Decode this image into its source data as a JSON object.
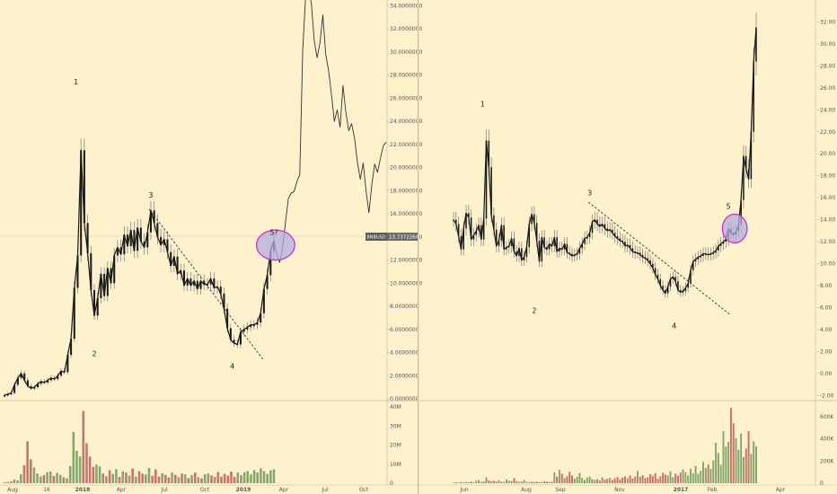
{
  "colors": {
    "background": "#fdf2cc",
    "candle": "#1a1a1a",
    "ellipse_fill": "#b3aee0",
    "ellipse_stroke": "#d12fd6",
    "volume_up": "#6e9a5a",
    "volume_down": "#c45a5a",
    "separator": "#c4b89a",
    "price_badge": "#6b6b6b"
  },
  "chart_data": [
    {
      "type": "line",
      "panel": "left",
      "x_ticks": [
        "Aug",
        "16",
        "2018",
        "Apr",
        "Jul",
        "Oct",
        "2019",
        "Apr",
        "Jul",
        "Oct"
      ],
      "y_ticks": [
        "0.0000000",
        "2.0000000",
        "4.0000000",
        "6.0000000",
        "8.0000000",
        "10.0000000",
        "12.0000000",
        "14.0000000",
        "16.0000000",
        "18.0000000",
        "20.0000000",
        "22.0000000",
        "24.0000000",
        "26.0000000",
        "28.0000000",
        "30.0000000",
        "32.0000000",
        "34.0000000"
      ],
      "ylim": [
        0,
        34.5
      ],
      "price_label": {
        "symbol": "BNBUSD",
        "value": "13.7372264"
      },
      "price_line_y": 13.74,
      "series": [
        {
          "values": [
            0.3,
            0.4,
            0.5,
            1.2,
            1.8,
            2.2,
            1.6,
            1.1,
            0.9,
            1.0,
            1.3,
            1.5,
            1.4,
            1.6,
            1.8,
            1.7,
            2.0,
            2.4,
            2.3,
            3.8,
            5.2,
            9.6,
            12.4,
            21.5,
            15.2,
            12.6,
            9.4,
            7.2,
            8.7,
            10.8,
            8.9,
            11.3,
            10.0,
            12.4,
            13.1,
            12.5,
            14.2,
            13.2,
            14.6,
            12.8,
            14.8,
            13.6,
            13.1,
            14.4,
            16.3,
            15.2,
            14.0,
            13.3,
            13.8,
            12.7,
            11.5,
            12.3,
            10.8,
            11.1,
            9.8,
            10.4,
            9.8,
            10.2,
            9.5,
            10.2,
            9.9,
            9.9,
            10.4,
            9.6,
            9.7,
            9.1,
            7.8,
            6.1,
            5.1,
            4.8,
            4.7,
            5.8,
            6.0,
            6.2,
            6.4,
            6.4,
            6.6,
            7.4,
            9.5,
            10.7,
            12.8,
            13.7
          ]
        },
        {
          "values": [
            13.7,
            12.5,
            11.8,
            13.0,
            15.2,
            17.3,
            17.8,
            17.9,
            18.8,
            19.4,
            30.2,
            34.8,
            35.5,
            34.2,
            31.0,
            29.5,
            30.8,
            33.2,
            29.8,
            28.4,
            26.3,
            24.0,
            25.0,
            23.5,
            27.1,
            24.8,
            23.2,
            23.8,
            22.6,
            20.5,
            19.0,
            20.4,
            18.0,
            16.1,
            18.5,
            20.3,
            19.6,
            20.8,
            21.9,
            22.2
          ]
        }
      ],
      "volume": {
        "ylim": [
          0,
          42
        ],
        "y_ticks": [
          "0",
          "10M",
          "20M",
          "30M",
          "40M"
        ],
        "values": [
          0.5,
          0.7,
          1.0,
          2.0,
          1.5,
          4.8,
          9.5,
          22,
          12.6,
          8.3,
          5.1,
          3.5,
          4.2,
          5.8,
          6.2,
          3.8,
          5.4,
          4.4,
          3.1,
          2.6,
          9.0,
          27.0,
          17.0,
          14.0,
          38.0,
          21.0,
          14.0,
          8.6,
          9.8,
          8.8,
          5.1,
          3.7,
          6.8,
          4.9,
          7.4,
          3.3,
          6.2,
          5.6,
          4.0,
          7.7,
          3.4,
          6.3,
          5.0,
          4.6,
          8.0,
          3.9,
          7.3,
          3.5,
          5.2,
          4.4,
          3.1,
          5.7,
          4.4,
          3.2,
          5.1,
          4.7,
          2.7,
          4.3,
          5.6,
          3.1,
          2.6,
          4.7,
          5.1,
          4.1,
          3.3,
          5.9,
          3.5,
          4.9,
          4.0,
          6.1,
          3.4,
          5.6,
          4.3,
          5.8,
          6.4,
          4.6,
          6.9,
          5.7,
          7.8,
          6.4,
          4.9,
          6.8,
          7.3
        ]
      },
      "annotations": [
        {
          "text": "1",
          "x": 21.5,
          "y": 27.2
        },
        {
          "text": "2",
          "x": 27.0,
          "y": 3.7
        },
        {
          "text": "3",
          "x": 44.0,
          "y": 17.4
        },
        {
          "text": "4",
          "x": 68.5,
          "y": 2.6
        },
        {
          "text": "5?",
          "x": 81.0,
          "y": 14.2
        }
      ],
      "trendline": [
        {
          "x": 43.5,
          "y": 16.4
        },
        {
          "x": 78.0,
          "y": 3.3
        }
      ],
      "ellipse": {
        "cx": 81.5,
        "cy": 13.3,
        "rx": 5.0,
        "ry": 1.3
      }
    },
    {
      "type": "line",
      "panel": "right",
      "x_ticks": [
        "Jun",
        "Aug",
        "Sep",
        "Nov",
        "2017",
        "Feb",
        "Apr"
      ],
      "y_ticks": [
        "-2.00",
        "0.00",
        "2.00",
        "4.00",
        "6.00",
        "8.00",
        "10.00",
        "12.00",
        "14.00",
        "16.00",
        "18.00",
        "20.00",
        "22.00",
        "24.00",
        "26.00",
        "28.00",
        "30.00",
        "32.00"
      ],
      "ylim": [
        -2.3,
        34.0
      ],
      "series": [
        {
          "values": [
            14.0,
            13.6,
            12.5,
            11.3,
            13.2,
            14.6,
            14.2,
            12.2,
            12.6,
            13.0,
            13.5,
            12.2,
            14.1,
            21.2,
            18.8,
            14.4,
            13.1,
            11.6,
            12.1,
            13.5,
            11.3,
            11.5,
            11.6,
            12.3,
            11.1,
            10.7,
            11.4,
            10.3,
            10.6,
            11.5,
            13.6,
            14.5,
            13.7,
            12.1,
            10.2,
            12.4,
            11.5,
            11.3,
            11.8,
            11.6,
            12.4,
            11.1,
            11.4,
            11.3,
            11.8,
            11.0,
            10.9,
            10.7,
            10.8,
            10.9,
            11.4,
            11.8,
            12.3,
            12.4,
            12.8,
            13.8,
            14.0,
            13.6,
            13.4,
            13.6,
            13.2,
            13.0,
            13.1,
            12.8,
            12.5,
            12.3,
            12.1,
            12.0,
            11.6,
            11.7,
            11.4,
            11.1,
            11.0,
            11.0,
            10.8,
            10.6,
            10.5,
            10.3,
            10.0,
            9.6,
            9.0,
            8.6,
            8.0,
            7.6,
            7.3,
            7.9,
            8.6,
            8.8,
            8.4,
            7.6,
            7.4,
            7.5,
            7.8,
            8.2,
            9.4,
            10.2,
            10.4,
            10.6,
            10.7,
            10.9,
            10.9,
            10.8,
            10.9,
            11.0,
            11.2,
            11.6,
            11.8,
            12.0,
            12.2,
            13.2,
            12.8,
            12.6,
            12.9,
            13.5,
            15.8,
            19.8,
            18.6,
            17.7,
            22.0,
            28.4,
            31.5
          ]
        }
      ],
      "volume": {
        "ylim": [
          0,
          720
        ],
        "y_ticks": [
          "0",
          "200K",
          "400K",
          "600K"
        ],
        "values": [
          5,
          8,
          6,
          10,
          7,
          12,
          9,
          15,
          8,
          24,
          30,
          12,
          18,
          52,
          26,
          18,
          22,
          14,
          28,
          16,
          12,
          36,
          24,
          20,
          46,
          18,
          12,
          14,
          30,
          12,
          9,
          15,
          10,
          14,
          9,
          12,
          18,
          14,
          12,
          13,
          96,
          60,
          120,
          86,
          46,
          62,
          104,
          70,
          40,
          58,
          92,
          48,
          30,
          52,
          60,
          38,
          28,
          36,
          24,
          52,
          32,
          41,
          48,
          30,
          44,
          56,
          34,
          50,
          62,
          45,
          70,
          42,
          60,
          110,
          58,
          72,
          46,
          54,
          82,
          66,
          90,
          40,
          62,
          94,
          78,
          70,
          108,
          54,
          86,
          68,
          96,
          124,
          100,
          70,
          130,
          90,
          156,
          84,
          112,
          192,
          138,
          168,
          128,
          206,
          364,
          272,
          166,
          468,
          330,
          372,
          680,
          540,
          406,
          302,
          448,
          236,
          312,
          470,
          264,
          378,
          332
        ]
      },
      "annotations": [
        {
          "text": "1",
          "x": 11.5,
          "y": 24.3
        },
        {
          "text": "2",
          "x": 32.0,
          "y": 5.5
        },
        {
          "text": "3",
          "x": 54.0,
          "y": 16.2
        },
        {
          "text": "4",
          "x": 87.5,
          "y": 4.1
        },
        {
          "text": "5",
          "x": 109.0,
          "y": 15.0
        }
      ],
      "trendline": [
        {
          "x": 53.5,
          "y": 15.6
        },
        {
          "x": 110.0,
          "y": 5.3
        }
      ],
      "ellipse": {
        "cx": 111.5,
        "cy": 13.2,
        "rx": 7.0,
        "ry": 1.3
      }
    }
  ]
}
